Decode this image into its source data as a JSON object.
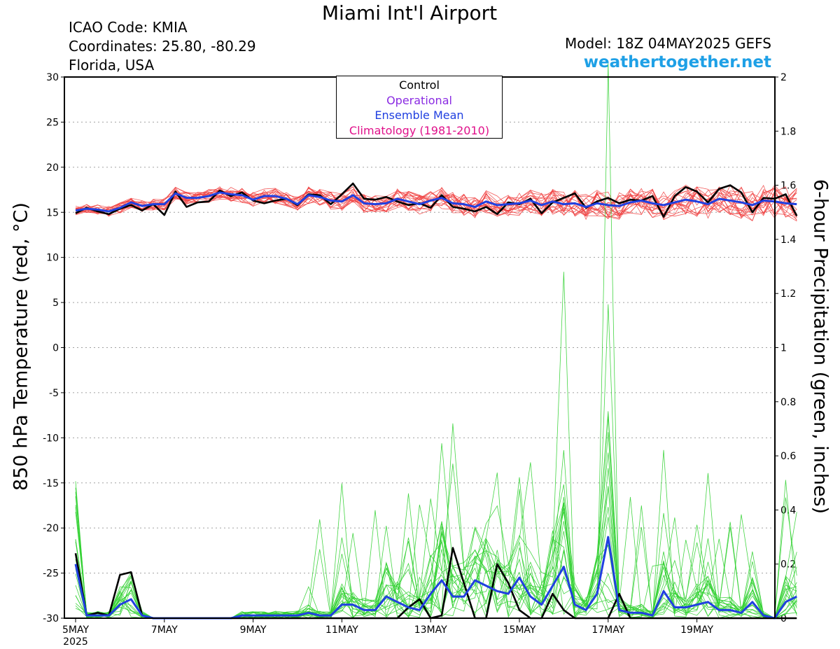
{
  "header": {
    "title": "Miami Int'l Airport",
    "icao": "ICAO Code: KMIA",
    "coords": "Coordinates: 25.80, -80.29",
    "region": "Florida, USA",
    "model": "Model: 18Z 04MAY2025 GEFS",
    "site": "weathertogether.net"
  },
  "legend": {
    "control": "Control",
    "operational": "Operational",
    "mean": "Ensemble Mean",
    "climatology": "Climatology (1981-2010)"
  },
  "colors": {
    "control": "#000000",
    "operational": "#8a2be2",
    "mean": "#2040e0",
    "climatology": "#e0108a",
    "members_temp": "#f04040",
    "members_precip": "#30d030",
    "site": "#1ea0e6"
  },
  "chart_data": {
    "type": "line",
    "ylabel": "850 hPa Temperature (red, °C)",
    "y2label": "6-hour Precipitation (green, inches)",
    "ylim": [
      -30,
      30
    ],
    "y2lim": [
      0,
      2
    ],
    "yticks": [
      30,
      25,
      20,
      15,
      10,
      5,
      0,
      -5,
      -10,
      -15,
      -20,
      -25,
      -30
    ],
    "y2ticks": [
      "2",
      "1.8",
      "1.6",
      "1.4",
      "1.2",
      "1",
      "0.8",
      "0.6",
      "0.4",
      "0.2",
      "0"
    ],
    "xtick_labels": [
      "5MAY",
      "7MAY",
      "9MAY",
      "11MAY",
      "13MAY",
      "15MAY",
      "17MAY",
      "19MAY"
    ],
    "xtick_sublabel": "2025",
    "x_days": [
      0,
      2,
      4,
      6,
      8,
      10,
      12,
      14
    ],
    "grid": true,
    "legend_position": "top-center",
    "temperature": {
      "control": [
        14.9,
        15.5,
        15.1,
        14.8,
        15.4,
        15.8,
        15.2,
        15.9,
        14.7,
        17.3,
        15.6,
        16.1,
        16.2,
        17.4,
        16.8,
        17.2,
        16.3,
        16.0,
        16.3,
        16.5,
        15.8,
        17.0,
        16.9,
        15.9,
        17.0,
        18.2,
        16.5,
        16.4,
        16.7,
        16.2,
        15.8,
        16.0,
        15.5,
        16.9,
        15.6,
        15.4,
        15.1,
        15.6,
        14.8,
        16.1,
        15.9,
        16.5,
        14.9,
        16.1,
        16.6,
        17.1,
        15.5,
        16.2,
        16.6,
        16.0,
        16.4,
        16.3,
        16.8,
        14.5,
        16.8,
        17.8,
        17.3,
        16.1,
        17.6,
        18.0,
        17.2,
        15.0,
        16.6,
        16.5,
        17.0,
        14.6
      ],
      "mean": [
        15.2,
        15.4,
        15.3,
        15.1,
        15.5,
        16.1,
        15.7,
        15.9,
        15.9,
        17.1,
        16.6,
        16.6,
        16.8,
        17.2,
        17.0,
        16.9,
        16.4,
        16.8,
        16.8,
        16.5,
        15.9,
        16.9,
        16.7,
        16.3,
        16.2,
        16.9,
        16.0,
        15.9,
        16.0,
        16.5,
        16.2,
        15.9,
        16.3,
        16.6,
        16.0,
        15.9,
        15.6,
        16.2,
        15.8,
        15.9,
        16.0,
        16.3,
        15.8,
        16.2,
        15.9,
        16.0,
        15.6,
        16.0,
        15.8,
        15.7,
        16.1,
        16.3,
        16.0,
        15.8,
        16.1,
        16.4,
        16.2,
        15.9,
        16.5,
        16.3,
        16.1,
        15.8,
        16.3,
        16.2,
        16.0,
        15.9
      ]
    },
    "precipitation": {
      "control": [
        0.24,
        0.01,
        0.02,
        0.01,
        0.16,
        0.17,
        0.01,
        0.0,
        0.0,
        0.0,
        0.0,
        0.0,
        0.0,
        0.0,
        0.0,
        0.0,
        0.0,
        0.0,
        0.0,
        0.0,
        0.0,
        0.0,
        0.0,
        0.0,
        0.0,
        0.0,
        0.0,
        0.0,
        0.0,
        0.0,
        0.04,
        0.07,
        0.0,
        0.01,
        0.26,
        0.13,
        0.0,
        0.0,
        0.2,
        0.13,
        0.03,
        0.0,
        0.0,
        0.09,
        0.03,
        0.0,
        0.0,
        0.0,
        0.0,
        0.09,
        0.0,
        0.0,
        0.0,
        0.0,
        0.0,
        0.0,
        0.0,
        0.0,
        0.0,
        0.0,
        0.0,
        0.0,
        0.0,
        0.0,
        0.0,
        0.0
      ],
      "mean": [
        0.2,
        0.01,
        0.01,
        0.01,
        0.05,
        0.07,
        0.01,
        0.0,
        0.0,
        0.0,
        0.0,
        0.0,
        0.0,
        0.0,
        0.0,
        0.01,
        0.01,
        0.01,
        0.01,
        0.01,
        0.01,
        0.02,
        0.01,
        0.01,
        0.05,
        0.05,
        0.03,
        0.03,
        0.08,
        0.06,
        0.04,
        0.03,
        0.09,
        0.14,
        0.08,
        0.08,
        0.14,
        0.12,
        0.1,
        0.09,
        0.15,
        0.08,
        0.05,
        0.12,
        0.19,
        0.05,
        0.03,
        0.09,
        0.3,
        0.03,
        0.02,
        0.02,
        0.01,
        0.1,
        0.04,
        0.04,
        0.05,
        0.06,
        0.03,
        0.03,
        0.02,
        0.06,
        0.01,
        0.0,
        0.06,
        0.08
      ]
    }
  }
}
